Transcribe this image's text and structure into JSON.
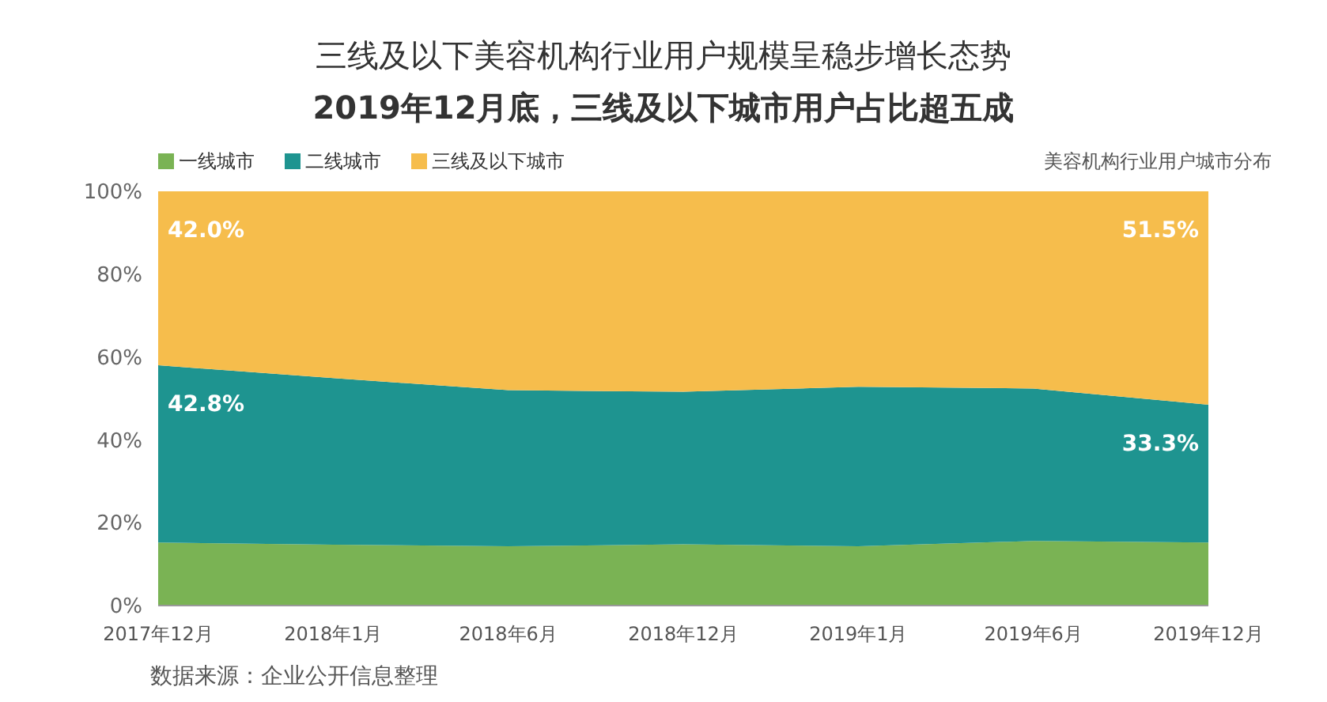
{
  "chart_data": {
    "type": "area",
    "stacked": true,
    "title": "三线及以下美容机构行业用户规模呈稳步增长态势",
    "subtitle": "2019年12月底，三线及以下城市用户占比超五成",
    "annotations": [
      "美容机构行业用户城市分布",
      "数据来源：企业公开信息整理"
    ],
    "categories": [
      "2017年12月",
      "2018年1月",
      "2018年6月",
      "2018年12月",
      "2019年1月",
      "2019年6月",
      "2019年12月"
    ],
    "series": [
      {
        "name": "一线城市",
        "color": "#7ab354",
        "values": [
          15.2,
          14.7,
          14.3,
          14.8,
          14.3,
          15.6,
          15.2
        ]
      },
      {
        "name": "二线城市",
        "color": "#1e9490",
        "values": [
          42.8,
          40.2,
          37.7,
          36.8,
          38.5,
          36.8,
          33.3
        ],
        "value_labels": [
          "42.8%",
          null,
          null,
          null,
          null,
          null,
          "33.3%"
        ]
      },
      {
        "name": "三线及以下城市",
        "color": "#f6bd4c",
        "values": [
          42.0,
          45.1,
          48.0,
          48.4,
          47.2,
          47.6,
          51.5
        ],
        "value_labels": [
          "42.0%",
          null,
          null,
          null,
          null,
          null,
          "51.5%"
        ]
      }
    ],
    "ylim": [
      0,
      100
    ],
    "yticks": [
      {
        "value": 0,
        "label": "0%"
      },
      {
        "value": 20,
        "label": "20%"
      },
      {
        "value": 40,
        "label": "40%"
      },
      {
        "value": 60,
        "label": "60%"
      },
      {
        "value": 80,
        "label": "80%"
      },
      {
        "value": 100,
        "label": "100%"
      }
    ],
    "grid": false,
    "legend": "top left"
  }
}
